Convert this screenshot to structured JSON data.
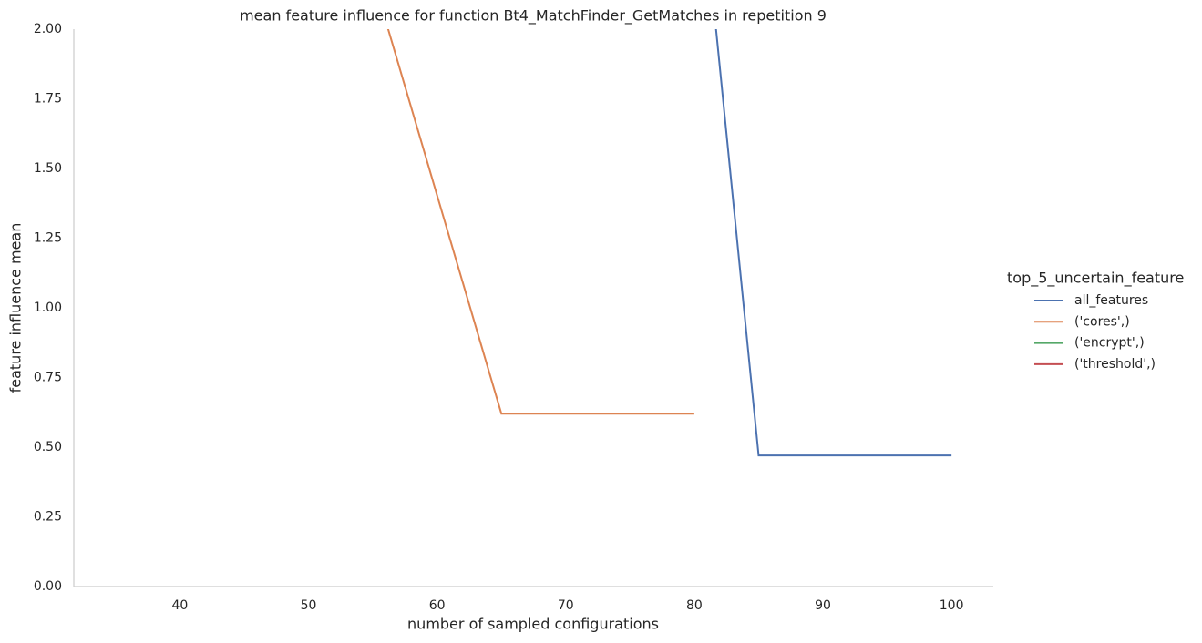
{
  "chart_data": {
    "type": "line",
    "title": "mean feature influence for function Bt4_MatchFinder_GetMatches in repetition 9",
    "x_label": "number of sampled configurations",
    "y_label": "feature influence mean",
    "legend_title": "top_5_uncertain_feature",
    "legend_position": "right",
    "grid": false,
    "xlim": [
      31.75,
      103.25
    ],
    "xticks": [
      40,
      50,
      60,
      70,
      80,
      90,
      100
    ],
    "ylim": [
      0,
      2
    ],
    "yticks": [
      {
        "value": 0,
        "label": "0.00"
      },
      {
        "value": 0.25,
        "label": "0.25"
      },
      {
        "value": 0.5,
        "label": "0.50"
      },
      {
        "value": 0.75,
        "label": "0.75"
      },
      {
        "value": 1,
        "label": "1.00"
      },
      {
        "value": 1.25,
        "label": "1.25"
      },
      {
        "value": 1.5,
        "label": "1.50"
      },
      {
        "value": 1.75,
        "label": "1.75"
      },
      {
        "value": 2,
        "label": "2.00"
      }
    ],
    "series": [
      {
        "name": "all_features",
        "color": "#4c72b0",
        "x": [
          80,
          85,
          100
        ],
        "values": [
          2.78,
          0.47,
          0.47
        ]
      },
      {
        "name": "('cores',)",
        "color": "#dd8452",
        "x": [
          50,
          65,
          80
        ],
        "values": [
          2.97,
          0.62,
          0.62
        ]
      },
      {
        "name": "('encrypt',)",
        "color": "#55a868",
        "x": [],
        "values": []
      },
      {
        "name": "('threshold',)",
        "color": "#c44e52",
        "x": [],
        "values": []
      }
    ]
  }
}
